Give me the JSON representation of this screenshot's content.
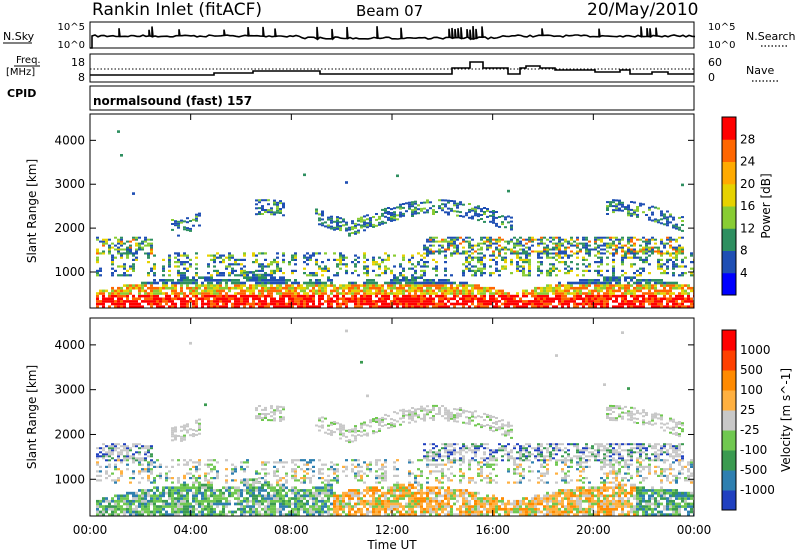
{
  "header": {
    "station": "Rankin Inlet (fitACF)",
    "beam": "Beam 07",
    "date": "20/May/2010"
  },
  "nsky_panel": {
    "left_label": "N.Sky",
    "left_ticks": [
      "10^5",
      "10^0"
    ],
    "right_ticks": [
      "10^5",
      "10^0"
    ],
    "right_label": "N.Search"
  },
  "freq_panel": {
    "left_label_line1": "Freq.",
    "left_label_line2": "[MHz]",
    "left_ticks": [
      "18",
      "8"
    ],
    "right_ticks": [
      "60",
      "0"
    ],
    "right_label": "Nave"
  },
  "cpid": {
    "label": "CPID",
    "value": "normalsound (fast) 157"
  },
  "chart_data": [
    {
      "type": "heatmap",
      "title": "",
      "ylabel": "Slant Range [km]",
      "xlabel": "",
      "x_ticks": [
        "00:00",
        "04:00",
        "08:00",
        "12:00",
        "16:00",
        "20:00",
        "00:00"
      ],
      "y_ticks": [
        "1000",
        "2000",
        "3000",
        "4000"
      ],
      "ylim": [
        180,
        4600
      ],
      "colorbar": {
        "label": "Power [dB]",
        "ticks": [
          "4",
          "8",
          "12",
          "16",
          "20",
          "24",
          "28"
        ],
        "colors": [
          "#0000ff",
          "#1f4fb4",
          "#2e8f60",
          "#88cc33",
          "#e6d200",
          "#ffaa00",
          "#ff6600",
          "#ff0000"
        ]
      },
      "scatter_bands_km": [
        [
          180,
          500
        ],
        [
          500,
          900
        ],
        [
          900,
          1400
        ],
        [
          1400,
          1800
        ],
        [
          1800,
          2600
        ]
      ]
    },
    {
      "type": "heatmap",
      "title": "",
      "ylabel": "Slant Range [km]",
      "xlabel": "Time UT",
      "x_ticks": [
        "00:00",
        "04:00",
        "08:00",
        "12:00",
        "16:00",
        "20:00",
        "00:00"
      ],
      "y_ticks": [
        "1000",
        "2000",
        "3000",
        "4000"
      ],
      "ylim": [
        180,
        4600
      ],
      "colorbar": {
        "label": "Velocity [m s^-1]",
        "ticks": [
          "1000",
          "500",
          "100",
          "25",
          "-25",
          "-100",
          "-500",
          "-1000"
        ],
        "colors": [
          "#2040c0",
          "#2e7fb0",
          "#3a9a50",
          "#70c850",
          "#c8c8c8",
          "#ffb040",
          "#ff8a00",
          "#ff4000",
          "#ff0000"
        ]
      }
    }
  ]
}
